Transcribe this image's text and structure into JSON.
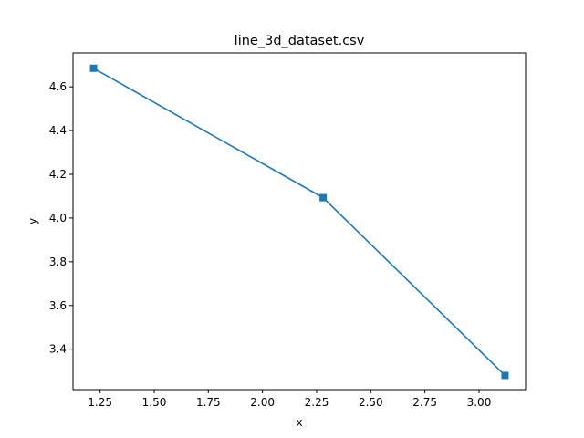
{
  "chart_data": {
    "type": "line",
    "title": "line_3d_dataset.csv",
    "xlabel": "x",
    "ylabel": "y",
    "xlim": [
      1.125,
      3.215
    ],
    "ylim": [
      3.215,
      4.755
    ],
    "xticks": [
      1.25,
      1.5,
      1.75,
      2.0,
      2.25,
      2.5,
      2.75,
      3.0
    ],
    "xtick_labels": [
      "1.25",
      "1.50",
      "1.75",
      "2.00",
      "2.25",
      "2.50",
      "2.75",
      "3.00"
    ],
    "yticks": [
      3.4,
      3.6,
      3.8,
      4.0,
      4.2,
      4.4,
      4.6
    ],
    "ytick_labels": [
      "3.4",
      "3.6",
      "3.8",
      "4.0",
      "4.2",
      "4.4",
      "4.6"
    ],
    "grid": false,
    "legend": "none",
    "marker": "square",
    "color": "#1f77b4",
    "series": [
      {
        "x": [
          1.22,
          2.28,
          3.12
        ],
        "y": [
          4.685,
          4.093,
          3.28
        ]
      }
    ]
  }
}
